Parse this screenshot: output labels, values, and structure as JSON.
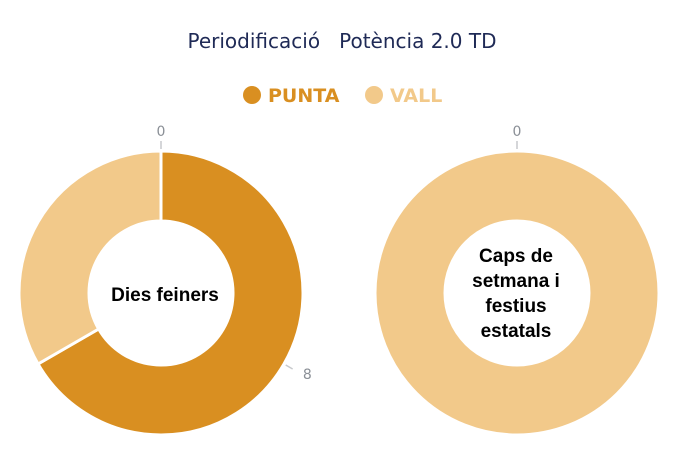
{
  "colors": {
    "punta": "#d98f21",
    "vall": "#f2c98a",
    "title": "#1f2a56"
  },
  "chart_data": {
    "type": "pie",
    "title": "Periodificació   Potència 2.0 TD",
    "legend": {
      "placement": "top",
      "entries": [
        "PUNTA",
        "VALL"
      ]
    },
    "charts": [
      {
        "center_label": "Dies feiners",
        "slices": [
          {
            "name": "PUNTA",
            "value": 16,
            "color": "#d98f21"
          },
          {
            "name": "VALL",
            "value": 8,
            "color": "#f2c98a"
          }
        ],
        "tick_labels": [
          {
            "text": "0",
            "at": 0
          },
          {
            "text": "8",
            "at": 8
          }
        ]
      },
      {
        "center_label": "Caps de setmana i festius estatals",
        "slices": [
          {
            "name": "PUNTA",
            "value": 0,
            "color": "#d98f21"
          },
          {
            "name": "VALL",
            "value": 24,
            "color": "#f2c98a"
          }
        ],
        "tick_labels": [
          {
            "text": "0",
            "at": 0
          }
        ]
      }
    ]
  }
}
